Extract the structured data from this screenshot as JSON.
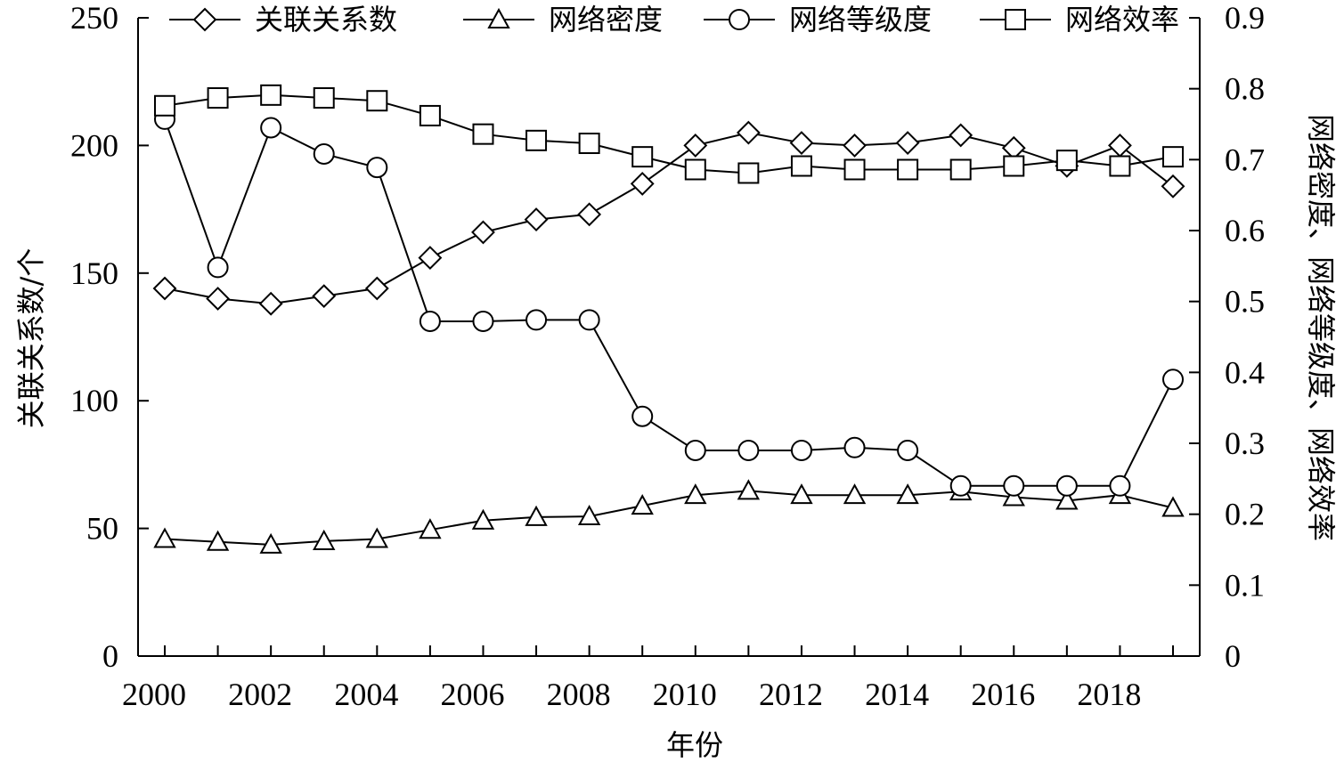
{
  "chart_data": {
    "type": "line",
    "xlabel": "年份",
    "ylabel_left": "关联关系数/个",
    "ylabel_right": "网络密度、网络等级度、网络效率",
    "ylim_left": [
      0,
      250
    ],
    "ylim_right": [
      0,
      0.9
    ],
    "yticks_left": [
      "0",
      "50",
      "100",
      "150",
      "200",
      "250"
    ],
    "yticks_right": [
      "0",
      "0.1",
      "0.2",
      "0.3",
      "0.4",
      "0.5",
      "0.6",
      "0.7",
      "0.8",
      "0.9"
    ],
    "x": [
      2000,
      2001,
      2002,
      2003,
      2004,
      2005,
      2006,
      2007,
      2008,
      2009,
      2010,
      2011,
      2012,
      2013,
      2014,
      2015,
      2016,
      2017,
      2018,
      2019
    ],
    "xticks": [
      "2000",
      "2002",
      "2004",
      "2006",
      "2008",
      "2010",
      "2012",
      "2014",
      "2016",
      "2018"
    ],
    "legend_position": "top",
    "series": [
      {
        "name": "关联关系数",
        "axis": "left",
        "marker": "diamond",
        "values": [
          144,
          140,
          138,
          141,
          144,
          156,
          166,
          171,
          173,
          185,
          200,
          205,
          201,
          200,
          201,
          204,
          199,
          192,
          200,
          184
        ]
      },
      {
        "name": "网络密度",
        "axis": "right",
        "marker": "triangle",
        "values": [
          0.165,
          0.161,
          0.157,
          0.162,
          0.165,
          0.178,
          0.191,
          0.196,
          0.197,
          0.212,
          0.227,
          0.233,
          0.227,
          0.227,
          0.227,
          0.232,
          0.224,
          0.219,
          0.227,
          0.209
        ]
      },
      {
        "name": "网络等级度",
        "axis": "right",
        "marker": "circle",
        "values": [
          0.757,
          0.548,
          0.745,
          0.708,
          0.689,
          0.472,
          0.472,
          0.474,
          0.474,
          0.338,
          0.29,
          0.29,
          0.29,
          0.294,
          0.29,
          0.24,
          0.24,
          0.24,
          0.24,
          0.39
        ]
      },
      {
        "name": "网络效率",
        "axis": "right",
        "marker": "square",
        "values": [
          0.776,
          0.787,
          0.791,
          0.787,
          0.783,
          0.762,
          0.736,
          0.727,
          0.723,
          0.704,
          0.686,
          0.681,
          0.691,
          0.686,
          0.686,
          0.686,
          0.691,
          0.699,
          0.691,
          0.704
        ]
      }
    ]
  }
}
